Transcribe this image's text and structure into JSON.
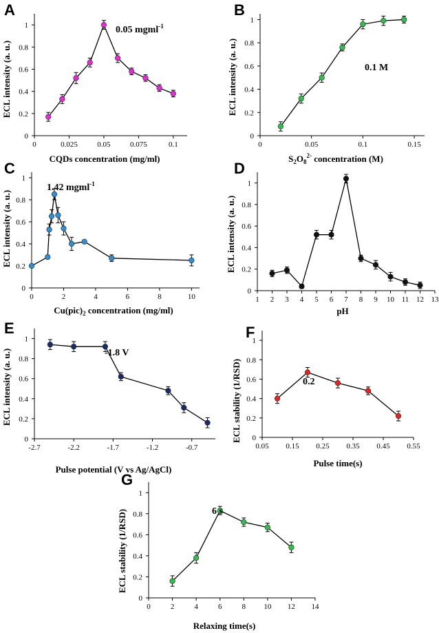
{
  "chart_data": [
    {
      "panel": "A",
      "type": "line",
      "xlabel": "CQDs concentration (mg/ml)",
      "ylabel": "ECL intensity (a. u.)",
      "xlim": [
        0,
        0.11
      ],
      "ylim": [
        0,
        1.1
      ],
      "xticks": [
        "0",
        "0.025",
        "0.05",
        "0.075",
        "0.1"
      ],
      "yticks": [
        "0",
        "0.2",
        "0.4",
        "0.6",
        "0.8",
        "1"
      ],
      "annotation": {
        "text": "0.05 mgml",
        "sup": "-1"
      },
      "color": "#e52bd6",
      "x": [
        0.01,
        0.02,
        0.03,
        0.04,
        0.05,
        0.06,
        0.07,
        0.08,
        0.09,
        0.1
      ],
      "y": [
        0.17,
        0.33,
        0.52,
        0.66,
        1.0,
        0.7,
        0.58,
        0.52,
        0.43,
        0.38
      ],
      "err": [
        0.04,
        0.04,
        0.05,
        0.04,
        0.04,
        0.04,
        0.03,
        0.03,
        0.03,
        0.03
      ]
    },
    {
      "panel": "B",
      "type": "line",
      "xlabel": "S2O82- concentration (M)",
      "ylabel": "ECL intensity (a. u.)",
      "xlim": [
        0,
        0.16
      ],
      "ylim": [
        0,
        1.05
      ],
      "xticks": [
        "0",
        "0.05",
        "0.1",
        "0.15"
      ],
      "yticks": [
        "0",
        "0.2",
        "0.4",
        "0.6",
        "0.8",
        "1"
      ],
      "annotation": {
        "text": "0.1 M",
        "sup": ""
      },
      "color": "#2fbf4a",
      "x": [
        0.02,
        0.04,
        0.06,
        0.08,
        0.1,
        0.12,
        0.14
      ],
      "y": [
        0.08,
        0.32,
        0.5,
        0.76,
        0.96,
        0.99,
        1.0
      ],
      "err": [
        0.04,
        0.04,
        0.04,
        0.03,
        0.04,
        0.04,
        0.03
      ]
    },
    {
      "panel": "C",
      "type": "line",
      "xlabel": "Cu(pic)2 concentration (mg/ml)",
      "ylabel": "ECL intensity (a. u.)",
      "xlim": [
        0,
        10.5
      ],
      "ylim": [
        0,
        1.05
      ],
      "xticks": [
        "0",
        "2",
        "4",
        "6",
        "8",
        "10"
      ],
      "yticks": [
        "0",
        "0.2",
        "0.4",
        "0.6",
        "0.8",
        "1"
      ],
      "annotation": {
        "text": "1.42 mgml",
        "sup": "-1"
      },
      "color": "#2d8fd4",
      "x": [
        0,
        1.0,
        1.1,
        1.25,
        1.42,
        1.65,
        2.0,
        2.5,
        3.3,
        5.0,
        10.0
      ],
      "y": [
        0.2,
        0.28,
        0.53,
        0.65,
        0.85,
        0.66,
        0.54,
        0.4,
        0.42,
        0.27,
        0.25
      ],
      "err": [
        0.0,
        0.0,
        0.05,
        0.06,
        0.05,
        0.07,
        0.06,
        0.06,
        0.0,
        0.03,
        0.05
      ]
    },
    {
      "panel": "D",
      "type": "line",
      "xlabel": "pH",
      "ylabel": "ECL intensity (a. u.)",
      "xlim": [
        1,
        13
      ],
      "ylim": [
        0,
        1.1
      ],
      "xticks": [
        "1",
        "2",
        "3",
        "4",
        "5",
        "6",
        "7",
        "8",
        "9",
        "10",
        "11",
        "12",
        "13"
      ],
      "yticks": [
        "0",
        "0.2",
        "0.4",
        "0.6",
        "0.8",
        "1"
      ],
      "color": "#111111",
      "x": [
        2,
        3,
        4,
        5,
        6,
        7,
        8,
        9,
        10,
        11,
        12
      ],
      "y": [
        0.16,
        0.19,
        0.04,
        0.52,
        0.52,
        1.04,
        0.3,
        0.24,
        0.13,
        0.08,
        0.05
      ],
      "err": [
        0.03,
        0.03,
        0.02,
        0.04,
        0.04,
        0.04,
        0.03,
        0.04,
        0.04,
        0.03,
        0.03
      ]
    },
    {
      "panel": "E",
      "type": "line",
      "xlabel": "Pulse potential (V vs Ag/AgCl)",
      "ylabel": "ECL intensity (a. u.)",
      "xlim": [
        -2.7,
        -0.4
      ],
      "ylim": [
        0,
        1.1
      ],
      "xticks": [
        "-2.7",
        "-2.2",
        "-1.7",
        "-1.2",
        "-0.7"
      ],
      "yticks": [
        "0",
        "0.2",
        "0.4",
        "0.6",
        "0.8",
        "1"
      ],
      "annotation": {
        "text": "-1.8 V",
        "sup": ""
      },
      "color": "#1b2a6b",
      "x": [
        -2.5,
        -2.2,
        -1.8,
        -1.6,
        -1.0,
        -0.8,
        -0.5
      ],
      "y": [
        0.94,
        0.92,
        0.92,
        0.62,
        0.48,
        0.31,
        0.16
      ],
      "err": [
        0.05,
        0.05,
        0.05,
        0.04,
        0.04,
        0.05,
        0.05
      ]
    },
    {
      "panel": "F",
      "type": "line",
      "xlabel": "Pulse time(s)",
      "ylabel": "ECL stability (1/RSD)",
      "xlim": [
        0.05,
        0.55
      ],
      "ylim": [
        0,
        1.1
      ],
      "xticks": [
        "0.05",
        "0.15",
        "0.25",
        "0.35",
        "0.45",
        "0.55"
      ],
      "yticks": [
        "0",
        "0.2",
        "0.4",
        "0.6",
        "0.8",
        "1"
      ],
      "annotation": {
        "text": "0.2",
        "sup": ""
      },
      "color": "#e8231f",
      "x": [
        0.1,
        0.2,
        0.3,
        0.4,
        0.5
      ],
      "y": [
        0.4,
        0.67,
        0.56,
        0.48,
        0.22
      ],
      "err": [
        0.05,
        0.05,
        0.05,
        0.04,
        0.05
      ]
    },
    {
      "panel": "G",
      "type": "line",
      "xlabel": "Relaxing time(s)",
      "ylabel": "ECL stability (1/RSD)",
      "xlim": [
        0,
        14
      ],
      "ylim": [
        0,
        1.1
      ],
      "xticks": [
        "0",
        "2",
        "4",
        "6",
        "8",
        "10",
        "12",
        "14"
      ],
      "yticks": [
        "0",
        "0.2",
        "0.4",
        "0.6",
        "0.8",
        "1"
      ],
      "annotation": {
        "text": "6 s",
        "sup": ""
      },
      "color": "#2fbf4a",
      "x": [
        2,
        4,
        6,
        8,
        10,
        12
      ],
      "y": [
        0.16,
        0.38,
        0.83,
        0.72,
        0.67,
        0.48
      ],
      "err": [
        0.05,
        0.05,
        0.04,
        0.04,
        0.04,
        0.05
      ]
    }
  ]
}
